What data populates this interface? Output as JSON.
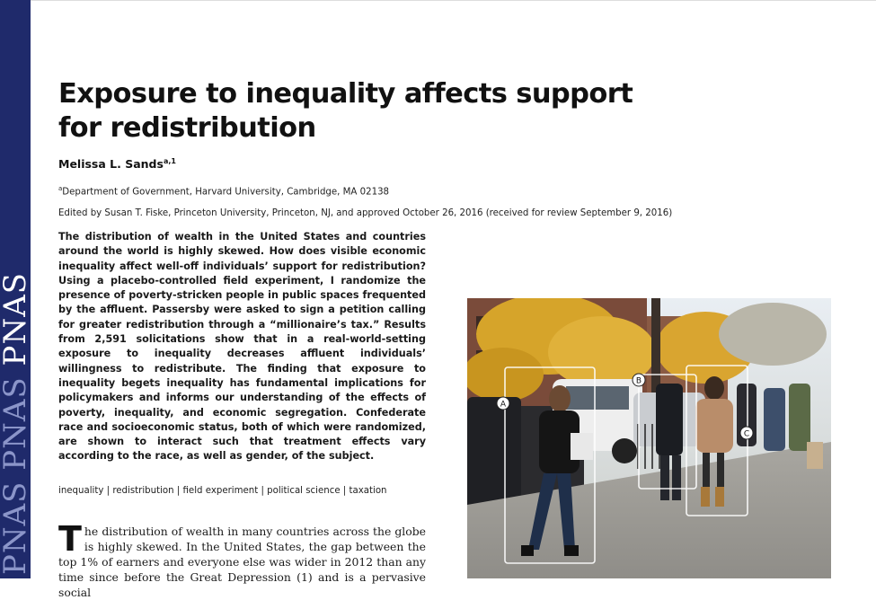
{
  "journal": {
    "logo_repeat": "PNAS PNAS PNAS"
  },
  "article": {
    "title": "Exposure to inequality affects support for redistribution",
    "author": "Melissa L. Sands",
    "author_sup": "a,1",
    "affiliation_sup": "a",
    "affiliation": "Department of Government, Harvard University, Cambridge, MA 02138",
    "edited_by": "Edited by Susan T. Fiske, Princeton University, Princeton, NJ, and approved October 26, 2016 (received for review September 9, 2016)",
    "abstract": "The distribution of wealth in the United States and countries around the world is highly skewed. How does visible economic inequality affect well-off individuals’ support for redistribution? Using a placebo-controlled field experiment, I randomize the presence of poverty-stricken people in public spaces frequented by the affluent. Passersby were asked to sign a petition calling for greater redistribution through a “millionaire’s tax.” Results from 2,591 solicitations show that in a real-world-setting exposure to inequality decreases affluent individuals’ willingness to redistribute. The finding that exposure to inequality begets inequality has fundamental implications for policymakers and informs our understanding of the effects of poverty, inequality, and economic segregation. Confederate race and socioeconomic status, both of which were randomized, are shown to interact such that treatment effects vary according to the race, as well as gender, of the subject.",
    "keywords": "inequality | redistribution | field experiment | political science | taxation",
    "body_dropcap": "T",
    "body_text": "he distribution of wealth in many countries across the globe is highly skewed. In the United States, the gap between the top 1% of earners and everyone else was wider in 2012 than any time since before the Great Depression (1) and is a pervasive social"
  },
  "figure": {
    "labels": [
      "A",
      "B",
      "C"
    ]
  },
  "colors": {
    "side_band": "#1f2a6b",
    "logo_light": "#8b95c9"
  }
}
